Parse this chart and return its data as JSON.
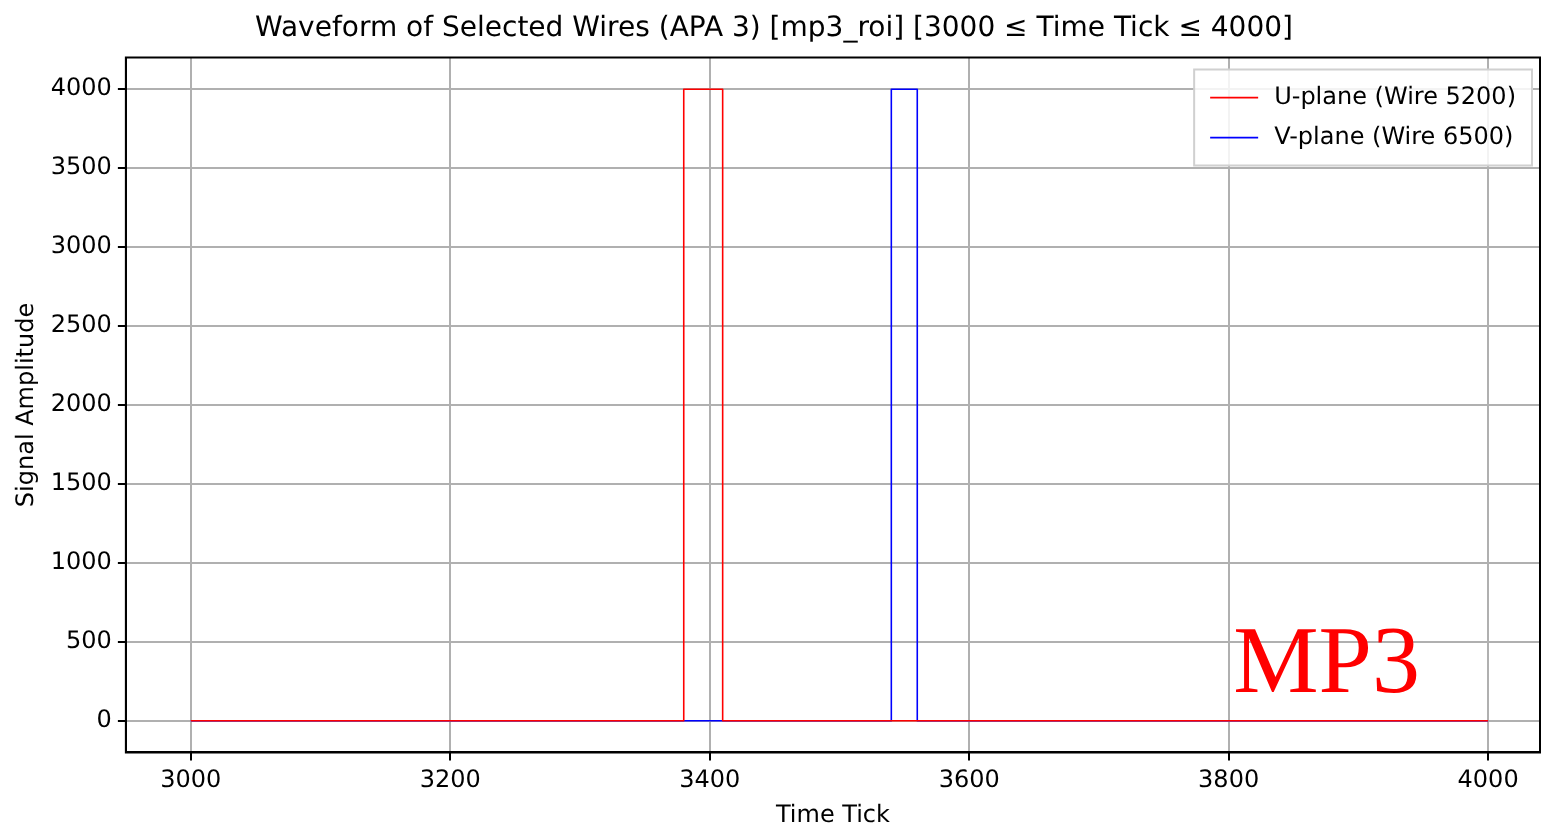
{
  "chart_data": {
    "type": "line",
    "title": "Waveform of Selected Wires (APA 3) [mp3_roi] [3000 ≤ Time Tick ≤ 4000]",
    "xlabel": "Time Tick",
    "ylabel": "Signal Amplitude",
    "series": [
      {
        "name": "U-plane (Wire 5200)",
        "color": "#ff0000",
        "x": [
          3000,
          3380,
          3380,
          3410,
          3410,
          4000
        ],
        "values": [
          0,
          0,
          4000,
          4000,
          0,
          0
        ]
      },
      {
        "name": "V-plane (Wire 6500)",
        "color": "#0000ff",
        "x": [
          3000,
          3540,
          3540,
          3560,
          3560,
          4000
        ],
        "values": [
          0,
          0,
          4000,
          4000,
          0,
          0
        ]
      }
    ],
    "xlim": [
      2950,
      4040
    ],
    "xticks": [
      3000,
      3200,
      3400,
      3600,
      3800,
      4000
    ],
    "ylim": [
      -200,
      4200
    ],
    "yticks": [
      0,
      500,
      1000,
      1500,
      2000,
      2500,
      3000,
      3500,
      4000
    ],
    "grid": true,
    "legend": "top right",
    "marker": "none",
    "line_style": "solid",
    "annotations": [
      "MP3"
    ]
  }
}
